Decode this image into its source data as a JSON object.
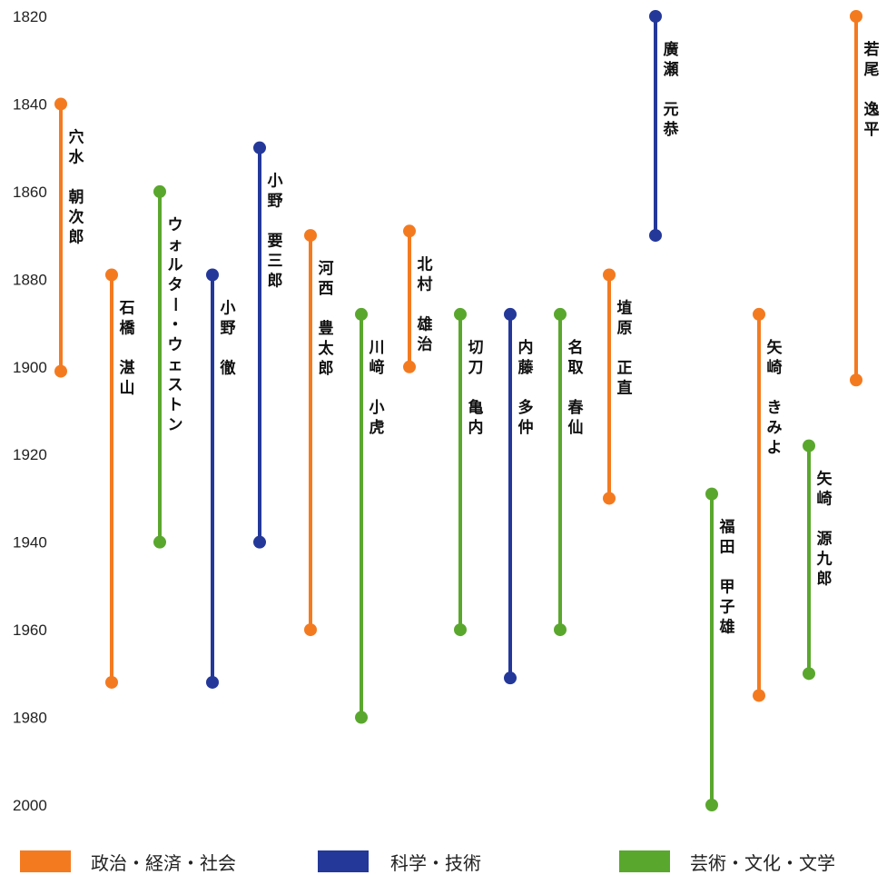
{
  "chart_data": {
    "type": "timeline",
    "title": "",
    "xlabel": "",
    "ylabel": "",
    "y_axis": "year",
    "ylim": [
      1820,
      2000
    ],
    "yticks": [
      1820,
      1840,
      1860,
      1880,
      1900,
      1920,
      1940,
      1960,
      1980,
      2000
    ],
    "grid": false,
    "legend_position": "bottom",
    "categories": [
      {
        "id": "politics",
        "label": "政治・経済・社会",
        "color": "#f47a20"
      },
      {
        "id": "science",
        "label": "科学・技術",
        "color": "#24389a"
      },
      {
        "id": "arts",
        "label": "芸術・文化・文学",
        "color": "#5aa72e"
      }
    ],
    "people": [
      {
        "name": [
          "穴水",
          "朝次郎"
        ],
        "category": "politics",
        "start": 1840,
        "end": 1901
      },
      {
        "name": [
          "石橋",
          "湛山"
        ],
        "category": "politics",
        "start": 1879,
        "end": 1972
      },
      {
        "name": [
          "ウォルター・ウェストン"
        ],
        "category": "arts",
        "start": 1860,
        "end": 1940
      },
      {
        "name": [
          "小野",
          "徹"
        ],
        "category": "science",
        "start": 1879,
        "end": 1972
      },
      {
        "name": [
          "小野",
          "要三郎"
        ],
        "category": "science",
        "start": 1850,
        "end": 1940
      },
      {
        "name": [
          "河西",
          "豊太郎"
        ],
        "category": "politics",
        "start": 1870,
        "end": 1960
      },
      {
        "name": [
          "川﨑",
          "小虎"
        ],
        "category": "arts",
        "start": 1888,
        "end": 1980
      },
      {
        "name": [
          "北村",
          "雄治"
        ],
        "category": "politics",
        "start": 1869,
        "end": 1900
      },
      {
        "name": [
          "切刀",
          "亀内"
        ],
        "category": "arts",
        "start": 1888,
        "end": 1960
      },
      {
        "name": [
          "内藤",
          "多仲"
        ],
        "category": "science",
        "start": 1888,
        "end": 1971
      },
      {
        "name": [
          "名取",
          "春仙"
        ],
        "category": "arts",
        "start": 1888,
        "end": 1960
      },
      {
        "name": [
          "埴原",
          "正直"
        ],
        "category": "politics",
        "start": 1879,
        "end": 1930
      },
      {
        "name": [
          "廣瀬",
          "元恭"
        ],
        "category": "science",
        "start": 1820,
        "end": 1870
      },
      {
        "name": [
          "福田",
          "甲子雄"
        ],
        "category": "arts",
        "start": 1929,
        "end": 2000
      },
      {
        "name": [
          "矢崎",
          "きみよ"
        ],
        "category": "politics",
        "start": 1888,
        "end": 1975
      },
      {
        "name": [
          "矢崎",
          "源九郎"
        ],
        "category": "arts",
        "start": 1918,
        "end": 1970
      },
      {
        "name": [
          "若尾",
          "逸平"
        ],
        "category": "politics",
        "start": 1820,
        "end": 1903
      }
    ]
  }
}
